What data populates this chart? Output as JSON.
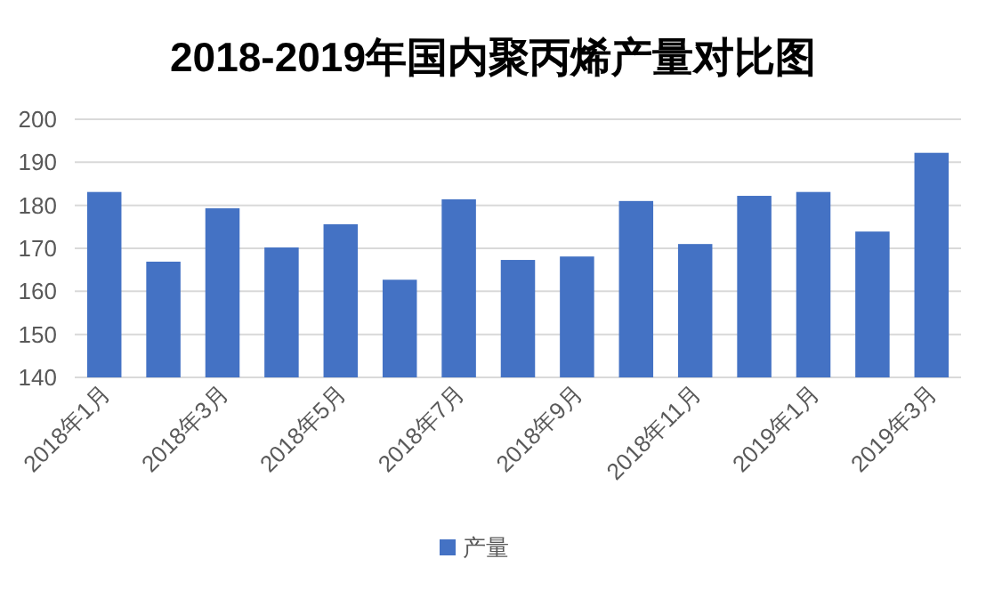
{
  "chart_data": {
    "type": "bar",
    "title": "2018-2019年国内聚丙烯产量对比图",
    "categories": [
      "2018年1月",
      null,
      "2018年3月",
      null,
      "2018年5月",
      null,
      "2018年7月",
      null,
      "2018年9月",
      null,
      "2018年11月",
      null,
      "2019年1月",
      null,
      "2019年3月"
    ],
    "series": [
      {
        "name": "产量",
        "color": "#4472c4",
        "values": [
          183.1,
          166.9,
          179.3,
          170.2,
          175.6,
          162.7,
          181.4,
          167.3,
          168.1,
          181,
          171,
          182.2,
          183.1,
          173.9,
          192.2
        ]
      }
    ],
    "ylim": [
      140,
      200
    ],
    "yticks": [
      140,
      150,
      160,
      170,
      180,
      190,
      200
    ],
    "grid": "y",
    "legend": "bottom"
  }
}
